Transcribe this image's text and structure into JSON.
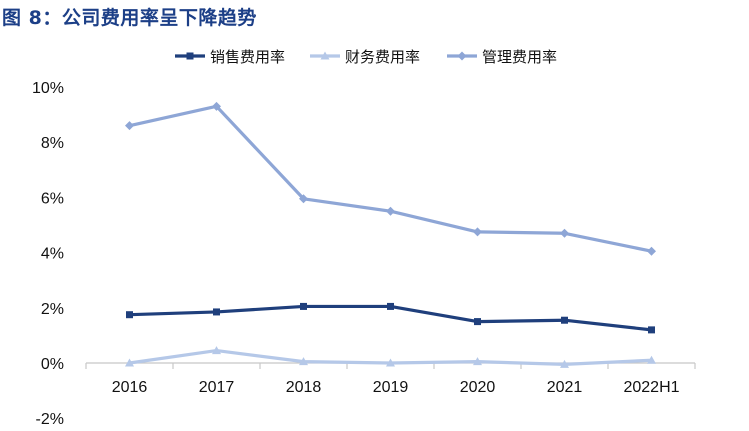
{
  "figure": {
    "title": "图 8：公司费用率呈下降趋势"
  },
  "chart_data": {
    "type": "line",
    "title": "图 8：公司费用率呈下降趋势",
    "categories": [
      "2016",
      "2017",
      "2018",
      "2019",
      "2020",
      "2021",
      "2022H1"
    ],
    "series": [
      {
        "name": "销售费用率",
        "color": "#1f3f7c",
        "marker": "square",
        "values": [
          1.75,
          1.85,
          2.05,
          2.05,
          1.5,
          1.55,
          1.2
        ]
      },
      {
        "name": "财务费用率",
        "color": "#b5c8e8",
        "marker": "triangle",
        "values": [
          0.0,
          0.45,
          0.05,
          0.0,
          0.05,
          -0.05,
          0.1
        ]
      },
      {
        "name": "管理费用率",
        "color": "#8ea6d6",
        "marker": "diamond",
        "values": [
          8.6,
          9.3,
          5.95,
          5.5,
          4.75,
          4.7,
          4.05
        ]
      }
    ],
    "y_ticks": [
      "-2%",
      "0%",
      "2%",
      "4%",
      "6%",
      "8%",
      "10%"
    ],
    "y_tick_values": [
      -2,
      0,
      2,
      4,
      6,
      8,
      10
    ],
    "ylim": [
      -2,
      10
    ],
    "legend_position": "top",
    "grid": false,
    "xlabel": "",
    "ylabel": ""
  }
}
